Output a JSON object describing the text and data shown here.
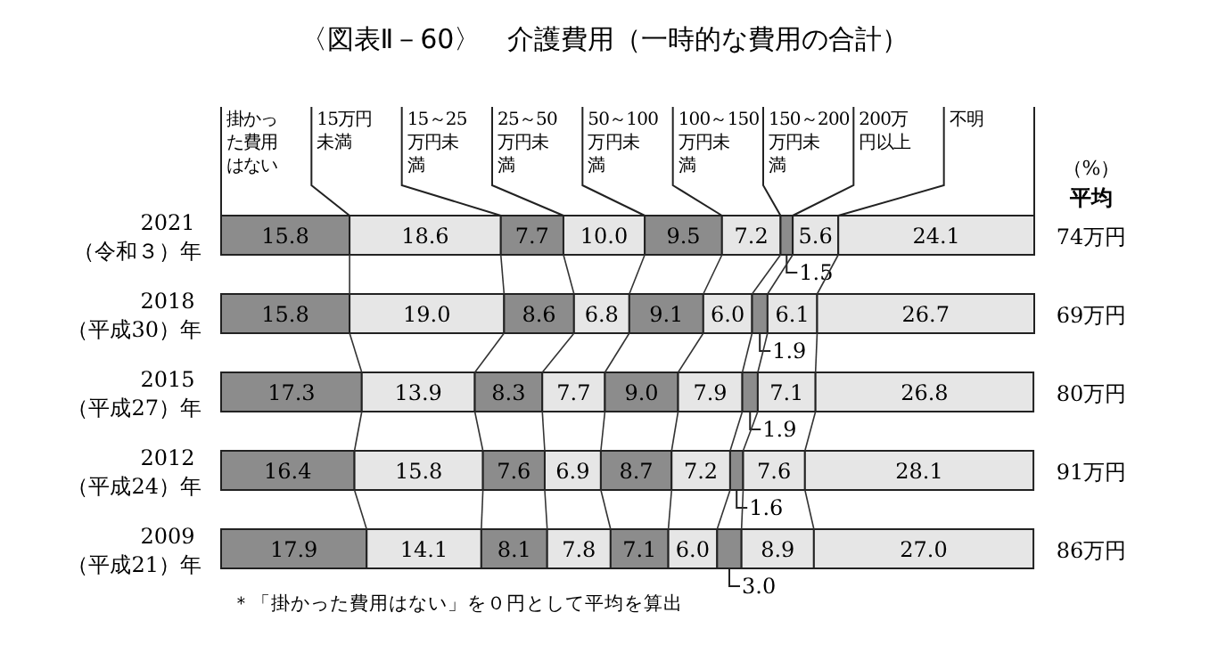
{
  "chart_data": {
    "type": "bar",
    "orientation": "horizontal",
    "stacked": true,
    "legend": "top",
    "xlim": [
      0,
      100
    ],
    "title": "〈図表Ⅱ－60〉　介護費用（一時的な費用の合計）",
    "xlabel": "（%）",
    "y2label": "平均",
    "categories": [
      "2021（令和３）年",
      "2018（平成30）年",
      "2015（平成27）年",
      "2012（平成24）年",
      "2009（平成21）年"
    ],
    "series": [
      {
        "name": "掛かった費用はない",
        "color": "#8c8c8c",
        "values": [
          15.8,
          15.8,
          17.3,
          16.4,
          17.9
        ],
        "value_labels": [
          "15.8",
          "15.8",
          "17.3",
          "16.4",
          "17.9"
        ]
      },
      {
        "name": "15万円未満",
        "color": "#e6e6e6",
        "values": [
          18.6,
          19.0,
          13.9,
          15.8,
          14.1
        ],
        "value_labels": [
          "18.6",
          "19.0",
          "13.9",
          "15.8",
          "14.1"
        ]
      },
      {
        "name": "15～25万円未満",
        "color": "#8c8c8c",
        "values": [
          7.7,
          8.6,
          8.3,
          7.6,
          8.1
        ],
        "value_labels": [
          "7.7",
          "8.6",
          "8.3",
          "7.6",
          "8.1"
        ]
      },
      {
        "name": "25～50万円未満",
        "color": "#e6e6e6",
        "values": [
          10.0,
          6.8,
          7.7,
          6.9,
          7.8
        ],
        "value_labels": [
          "10.0",
          "6.8",
          "7.7",
          "6.9",
          "7.8"
        ]
      },
      {
        "name": "50～100万円未満",
        "color": "#8c8c8c",
        "values": [
          9.5,
          9.1,
          9.0,
          8.7,
          7.1
        ],
        "value_labels": [
          "9.5",
          "9.1",
          "9.0",
          "8.7",
          "7.1"
        ]
      },
      {
        "name": "100～150万円未満",
        "color": "#e6e6e6",
        "values": [
          7.2,
          6.0,
          7.9,
          7.2,
          6.0
        ],
        "value_labels": [
          "7.2",
          "6.0",
          "7.9",
          "7.2",
          "6.0"
        ]
      },
      {
        "name": "150～200万円未満",
        "color": "#8c8c8c",
        "values": [
          1.5,
          1.9,
          1.9,
          1.6,
          3.0
        ],
        "value_labels": [
          "1.5",
          "1.9",
          "1.9",
          "1.6",
          "3.0"
        ]
      },
      {
        "name": "200万円以上",
        "color": "#e6e6e6",
        "values": [
          5.6,
          6.1,
          7.1,
          7.6,
          8.9
        ],
        "value_labels": [
          "5.6",
          "6.1",
          "7.1",
          "7.6",
          "8.9"
        ]
      },
      {
        "name": "不明",
        "color": "#e6e6e6",
        "values": [
          24.1,
          26.7,
          26.8,
          28.1,
          27.0
        ],
        "value_labels": [
          "24.1",
          "26.7",
          "26.8",
          "28.1",
          "27.0"
        ]
      }
    ],
    "annotations": [
      "74万円",
      "69万円",
      "80万円",
      "91万円",
      "86万円",
      "＊「掛かった費用はない」を０円として平均を算出"
    ]
  }
}
